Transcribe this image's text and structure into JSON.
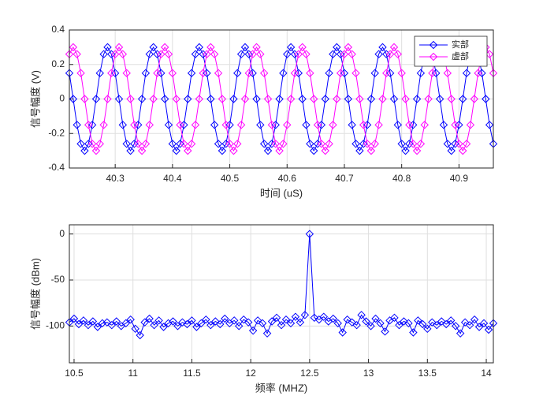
{
  "chart_data": [
    {
      "type": "line",
      "xlabel": "时间 (uS)",
      "ylabel": "信号幅度 (V)",
      "x": [
        40.22,
        40.2267,
        40.2333,
        40.24,
        40.2467,
        40.2533,
        40.26,
        40.2667,
        40.2733,
        40.28,
        40.2867,
        40.2933,
        40.3,
        40.3067,
        40.3133,
        40.32,
        40.3267,
        40.3333,
        40.34,
        40.3467,
        40.3533,
        40.36,
        40.3667,
        40.3733,
        40.38,
        40.3867,
        40.3933,
        40.4,
        40.4067,
        40.4133,
        40.42,
        40.4267,
        40.4333,
        40.44,
        40.4467,
        40.4533,
        40.46,
        40.4667,
        40.4733,
        40.48,
        40.4867,
        40.4933,
        40.5,
        40.5067,
        40.5133,
        40.52,
        40.5267,
        40.5333,
        40.54,
        40.5467,
        40.5533,
        40.56,
        40.5667,
        40.5733,
        40.58,
        40.5867,
        40.5933,
        40.6,
        40.6067,
        40.6133,
        40.62,
        40.6267,
        40.6333,
        40.64,
        40.6467,
        40.6533,
        40.66,
        40.6667,
        40.6733,
        40.68,
        40.6867,
        40.6933,
        40.7,
        40.7067,
        40.7133,
        40.72,
        40.7267,
        40.7333,
        40.74,
        40.7467,
        40.7533,
        40.76,
        40.7667,
        40.7733,
        40.78,
        40.7867,
        40.7933,
        40.8,
        40.8067,
        40.8133,
        40.82,
        40.8267,
        40.8333,
        40.84,
        40.8467,
        40.8533,
        40.86,
        40.8667,
        40.8733,
        40.88,
        40.8867,
        40.8933,
        40.9,
        40.9067,
        40.9133,
        40.92,
        40.9267,
        40.9333,
        40.94,
        40.9467,
        40.9533,
        40.96
      ],
      "series": [
        {
          "name": "实部",
          "color": "#0000ff",
          "values": [
            0.15,
            0,
            -0.15,
            -0.2598,
            -0.3,
            -0.2598,
            -0.15,
            0,
            0.15,
            0.2598,
            0.3,
            0.2598,
            0.15,
            0,
            -0.15,
            -0.2598,
            -0.3,
            -0.2598,
            -0.15,
            0,
            0.15,
            0.2598,
            0.3,
            0.2598,
            0.15,
            0,
            -0.15,
            -0.2598,
            -0.3,
            -0.2598,
            -0.15,
            0,
            0.15,
            0.2598,
            0.3,
            0.2598,
            0.15,
            0,
            -0.15,
            -0.2598,
            -0.3,
            -0.2598,
            -0.15,
            0,
            0.15,
            0.2598,
            0.3,
            0.2598,
            0.15,
            0,
            -0.15,
            -0.2598,
            -0.3,
            -0.2598,
            -0.15,
            0,
            0.15,
            0.2598,
            0.3,
            0.2598,
            0.15,
            0,
            -0.15,
            -0.2598,
            -0.3,
            -0.2598,
            -0.15,
            0,
            0.15,
            0.2598,
            0.3,
            0.2598,
            0.15,
            0,
            -0.15,
            -0.2598,
            -0.3,
            -0.2598,
            -0.15,
            0,
            0.15,
            0.2598,
            0.3,
            0.2598,
            0.15,
            0,
            -0.15,
            -0.2598,
            -0.3,
            -0.2598,
            -0.15,
            0,
            0.15,
            0.2598,
            0.3,
            0.2598,
            0.15,
            0,
            -0.15,
            -0.2598,
            -0.3,
            -0.2598,
            -0.15,
            0,
            0.15,
            0.2598,
            0.3,
            0.2598,
            0.15,
            0,
            -0.15,
            -0.2598
          ]
        },
        {
          "name": "虚部",
          "color": "#ff00ff",
          "values": [
            0.2598,
            0.3,
            0.2598,
            0.15,
            0,
            -0.15,
            -0.2598,
            -0.3,
            -0.2598,
            -0.15,
            0,
            0.15,
            0.2598,
            0.3,
            0.2598,
            0.15,
            0,
            -0.15,
            -0.2598,
            -0.3,
            -0.2598,
            -0.15,
            0,
            0.15,
            0.2598,
            0.3,
            0.2598,
            0.15,
            0,
            -0.15,
            -0.2598,
            -0.3,
            -0.2598,
            -0.15,
            0,
            0.15,
            0.2598,
            0.3,
            0.2598,
            0.15,
            0,
            -0.15,
            -0.2598,
            -0.3,
            -0.2598,
            -0.15,
            0,
            0.15,
            0.2598,
            0.3,
            0.2598,
            0.15,
            0,
            -0.15,
            -0.2598,
            -0.3,
            -0.2598,
            -0.15,
            0,
            0.15,
            0.2598,
            0.3,
            0.2598,
            0.15,
            0,
            -0.15,
            -0.2598,
            -0.3,
            -0.2598,
            -0.15,
            0,
            0.15,
            0.2598,
            0.3,
            0.2598,
            0.15,
            0,
            -0.15,
            -0.2598,
            -0.3,
            -0.2598,
            -0.15,
            0,
            0.15,
            0.2598,
            0.3,
            0.2598,
            0.15,
            0,
            -0.15,
            -0.2598,
            -0.3,
            -0.2598,
            -0.15,
            0,
            0.15,
            0.2598,
            0.3,
            0.2598,
            0.15,
            0,
            -0.15,
            -0.2598,
            -0.3,
            -0.2598,
            -0.15,
            0,
            0.15,
            0.2598,
            0.3,
            0.2598,
            0.15
          ]
        }
      ],
      "xlim": [
        40.22,
        40.96
      ],
      "ylim": [
        -0.4,
        0.4
      ],
      "xticks": [
        40.3,
        40.4,
        40.5,
        40.6,
        40.7,
        40.8,
        40.9
      ],
      "yticks": [
        -0.4,
        -0.2,
        0,
        0.2,
        0.4
      ],
      "grid": true,
      "legend": "northeast"
    },
    {
      "type": "line",
      "xlabel": "频率 (MHZ)",
      "ylabel": "信号幅度 (dBm)",
      "x": [
        10.46,
        10.5,
        10.54,
        10.58,
        10.62,
        10.66,
        10.7,
        10.74,
        10.78,
        10.82,
        10.86,
        10.9,
        10.94,
        10.98,
        11.02,
        11.06,
        11.1,
        11.14,
        11.18,
        11.22,
        11.26,
        11.3,
        11.34,
        11.38,
        11.42,
        11.46,
        11.5,
        11.54,
        11.58,
        11.62,
        11.66,
        11.7,
        11.74,
        11.78,
        11.82,
        11.86,
        11.9,
        11.94,
        11.98,
        12.02,
        12.06,
        12.1,
        12.14,
        12.18,
        12.22,
        12.26,
        12.3,
        12.34,
        12.38,
        12.42,
        12.46,
        12.5,
        12.54,
        12.58,
        12.62,
        12.66,
        12.7,
        12.74,
        12.78,
        12.82,
        12.86,
        12.9,
        12.94,
        12.98,
        13.02,
        13.06,
        13.1,
        13.14,
        13.18,
        13.22,
        13.26,
        13.3,
        13.34,
        13.38,
        13.42,
        13.46,
        13.5,
        13.54,
        13.58,
        13.62,
        13.66,
        13.7,
        13.74,
        13.78,
        13.82,
        13.86,
        13.9,
        13.94,
        13.98,
        14.02,
        14.06
      ],
      "series": [
        {
          "color": "#0000ff",
          "values": [
            -96,
            -92,
            -98,
            -94,
            -99,
            -95,
            -101,
            -97,
            -96,
            -99,
            -95,
            -100,
            -97,
            -93,
            -103,
            -110,
            -96,
            -92,
            -99,
            -94,
            -101,
            -97,
            -95,
            -100,
            -96,
            -98,
            -94,
            -101,
            -97,
            -93,
            -99,
            -95,
            -98,
            -92,
            -97,
            -94,
            -100,
            -93,
            -96,
            -105,
            -94,
            -97,
            -108,
            -95,
            -91,
            -99,
            -93,
            -97,
            -90,
            -96,
            -88,
            0,
            -91,
            -93,
            -90,
            -95,
            -92,
            -97,
            -107,
            -93,
            -96,
            -99,
            -88,
            -95,
            -100,
            -92,
            -97,
            -106,
            -94,
            -91,
            -99,
            -95,
            -97,
            -107,
            -94,
            -98,
            -103,
            -96,
            -99,
            -95,
            -98,
            -94,
            -100,
            -108,
            -96,
            -99,
            -93,
            -101,
            -97,
            -104,
            -97
          ]
        }
      ],
      "xlim": [
        10.46,
        14.06
      ],
      "ylim": [
        -140,
        10
      ],
      "xticks": [
        10.5,
        11,
        11.5,
        12,
        12.5,
        13,
        13.5,
        14
      ],
      "yticks": [
        -100,
        -50,
        0
      ],
      "grid": true
    }
  ]
}
